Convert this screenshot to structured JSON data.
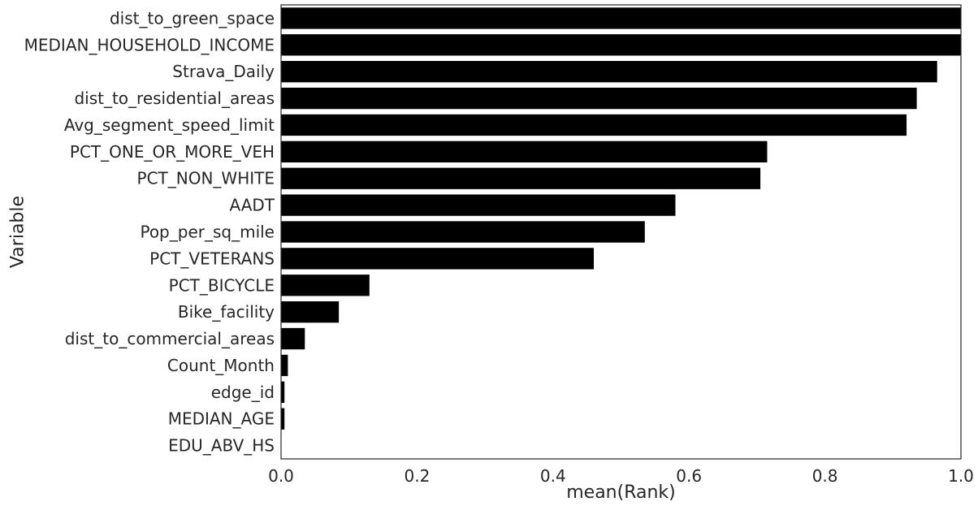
{
  "chart_data": {
    "type": "bar",
    "orientation": "horizontal",
    "categories": [
      "dist_to_green_space",
      "MEDIAN_HOUSEHOLD_INCOME",
      "Strava_Daily",
      "dist_to_residential_areas",
      "Avg_segment_speed_limit",
      "PCT_ONE_OR_MORE_VEH",
      "PCT_NON_WHITE",
      "AADT",
      "Pop_per_sq_mile",
      "PCT_VETERANS",
      "PCT_BICYCLE",
      "Bike_facility",
      "dist_to_commercial_areas",
      "Count_Month",
      "edge_id",
      "MEDIAN_AGE",
      "EDU_ABV_HS"
    ],
    "values": [
      1.0,
      1.0,
      0.965,
      0.935,
      0.92,
      0.715,
      0.705,
      0.58,
      0.535,
      0.46,
      0.13,
      0.085,
      0.035,
      0.01,
      0.005,
      0.005,
      0.0
    ],
    "xlabel": "mean(Rank)",
    "ylabel": "Variable",
    "xlim": [
      0.0,
      1.0
    ],
    "xticks": [
      "0.0",
      "0.2",
      "0.4",
      "0.6",
      "0.8",
      "1.0"
    ],
    "grid": false,
    "bar_color": "#000000"
  }
}
